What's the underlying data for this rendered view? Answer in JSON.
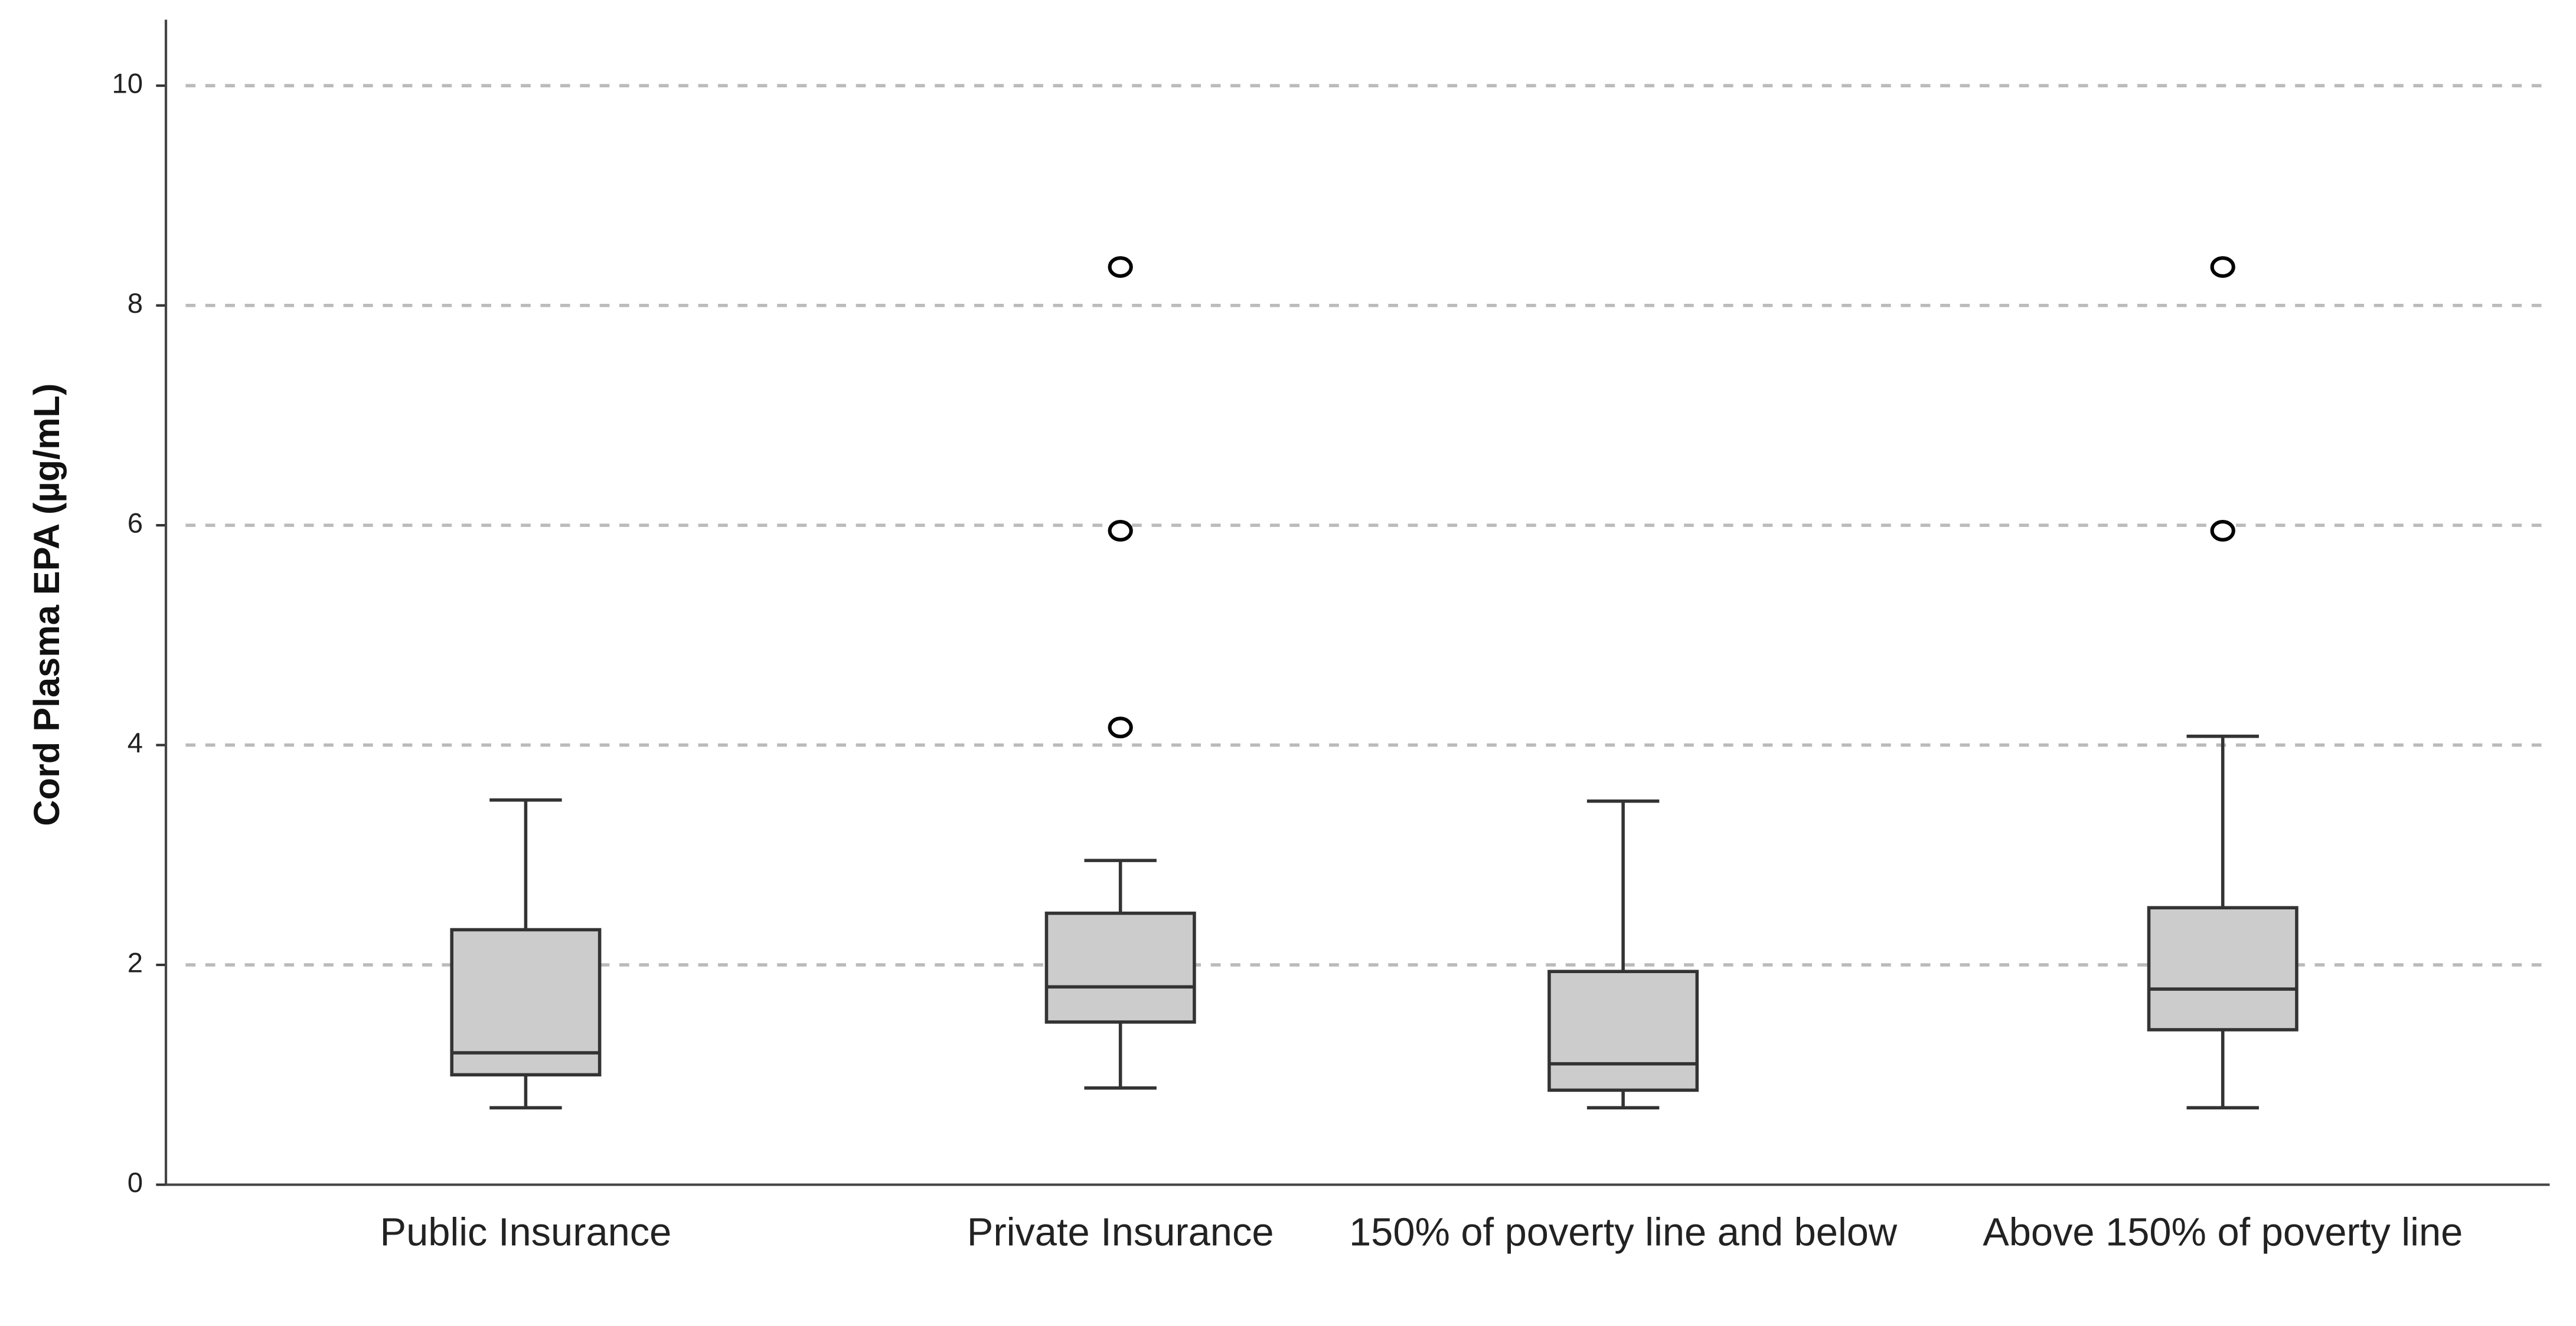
{
  "chart_data": {
    "type": "box",
    "y_label": "Cord Plasma EPA (µg/mL)",
    "categories": [
      "Public Insurance",
      "Private Insurance",
      "150% of poverty line and below",
      "Above 150% of poverty line"
    ],
    "boxes": [
      {
        "min": 0.7,
        "q1": 1.0,
        "median": 1.2,
        "q3": 2.32,
        "max": 3.5,
        "outliers": []
      },
      {
        "min": 0.88,
        "q1": 1.48,
        "median": 1.8,
        "q3": 2.47,
        "max": 2.95,
        "outliers": [
          8.35,
          5.95,
          4.16
        ]
      },
      {
        "min": 0.7,
        "q1": 0.86,
        "median": 1.1,
        "q3": 1.94,
        "max": 3.49,
        "outliers": []
      },
      {
        "min": 0.7,
        "q1": 1.41,
        "median": 1.78,
        "q3": 2.52,
        "max": 4.08,
        "outliers": [
          8.35,
          5.95
        ]
      }
    ],
    "color": "#cccccc",
    "ylim": [
      0,
      10.6
    ],
    "yticks": [
      0,
      2,
      4,
      6,
      8,
      10
    ],
    "grid": true
  }
}
